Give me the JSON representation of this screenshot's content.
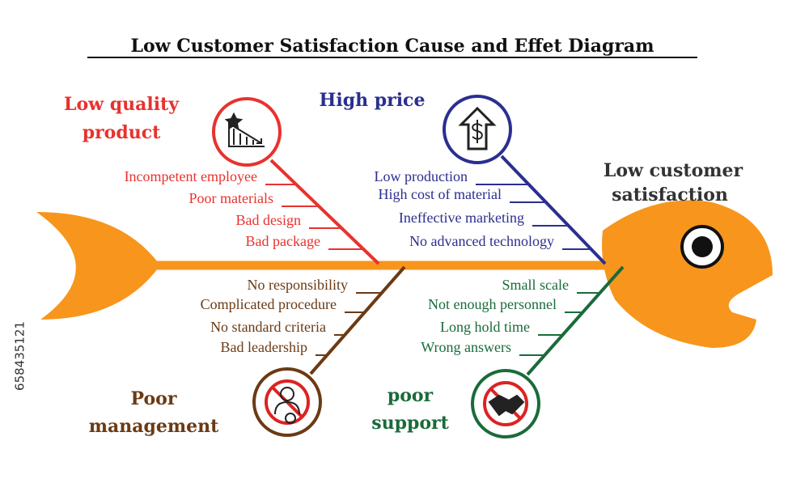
{
  "title": "Low Customer Satisfaction Cause and Effet Diagram",
  "effect": {
    "label_lines": [
      "Low customer",
      "satisfaction"
    ]
  },
  "causes": [
    {
      "label_lines": [
        "Low quality",
        "product"
      ],
      "items": [
        "Incompetent employee",
        "Poor materials",
        "Bad design",
        "Bad package"
      ]
    },
    {
      "label_lines": [
        "High price"
      ],
      "items": [
        "Low production",
        "High cost of material",
        "Ineffective marketing",
        "No advanced technology"
      ]
    },
    {
      "label_lines": [
        "Poor",
        "management"
      ],
      "items": [
        "No responsibility",
        "Complicated procedure",
        "No standard criteria",
        "Bad leadership"
      ]
    },
    {
      "label_lines": [
        "poor",
        "support"
      ],
      "items": [
        "Small scale",
        "Not enough personnel",
        "Long hold time",
        "Wrong answers"
      ]
    }
  ],
  "stock_id": "658435121"
}
